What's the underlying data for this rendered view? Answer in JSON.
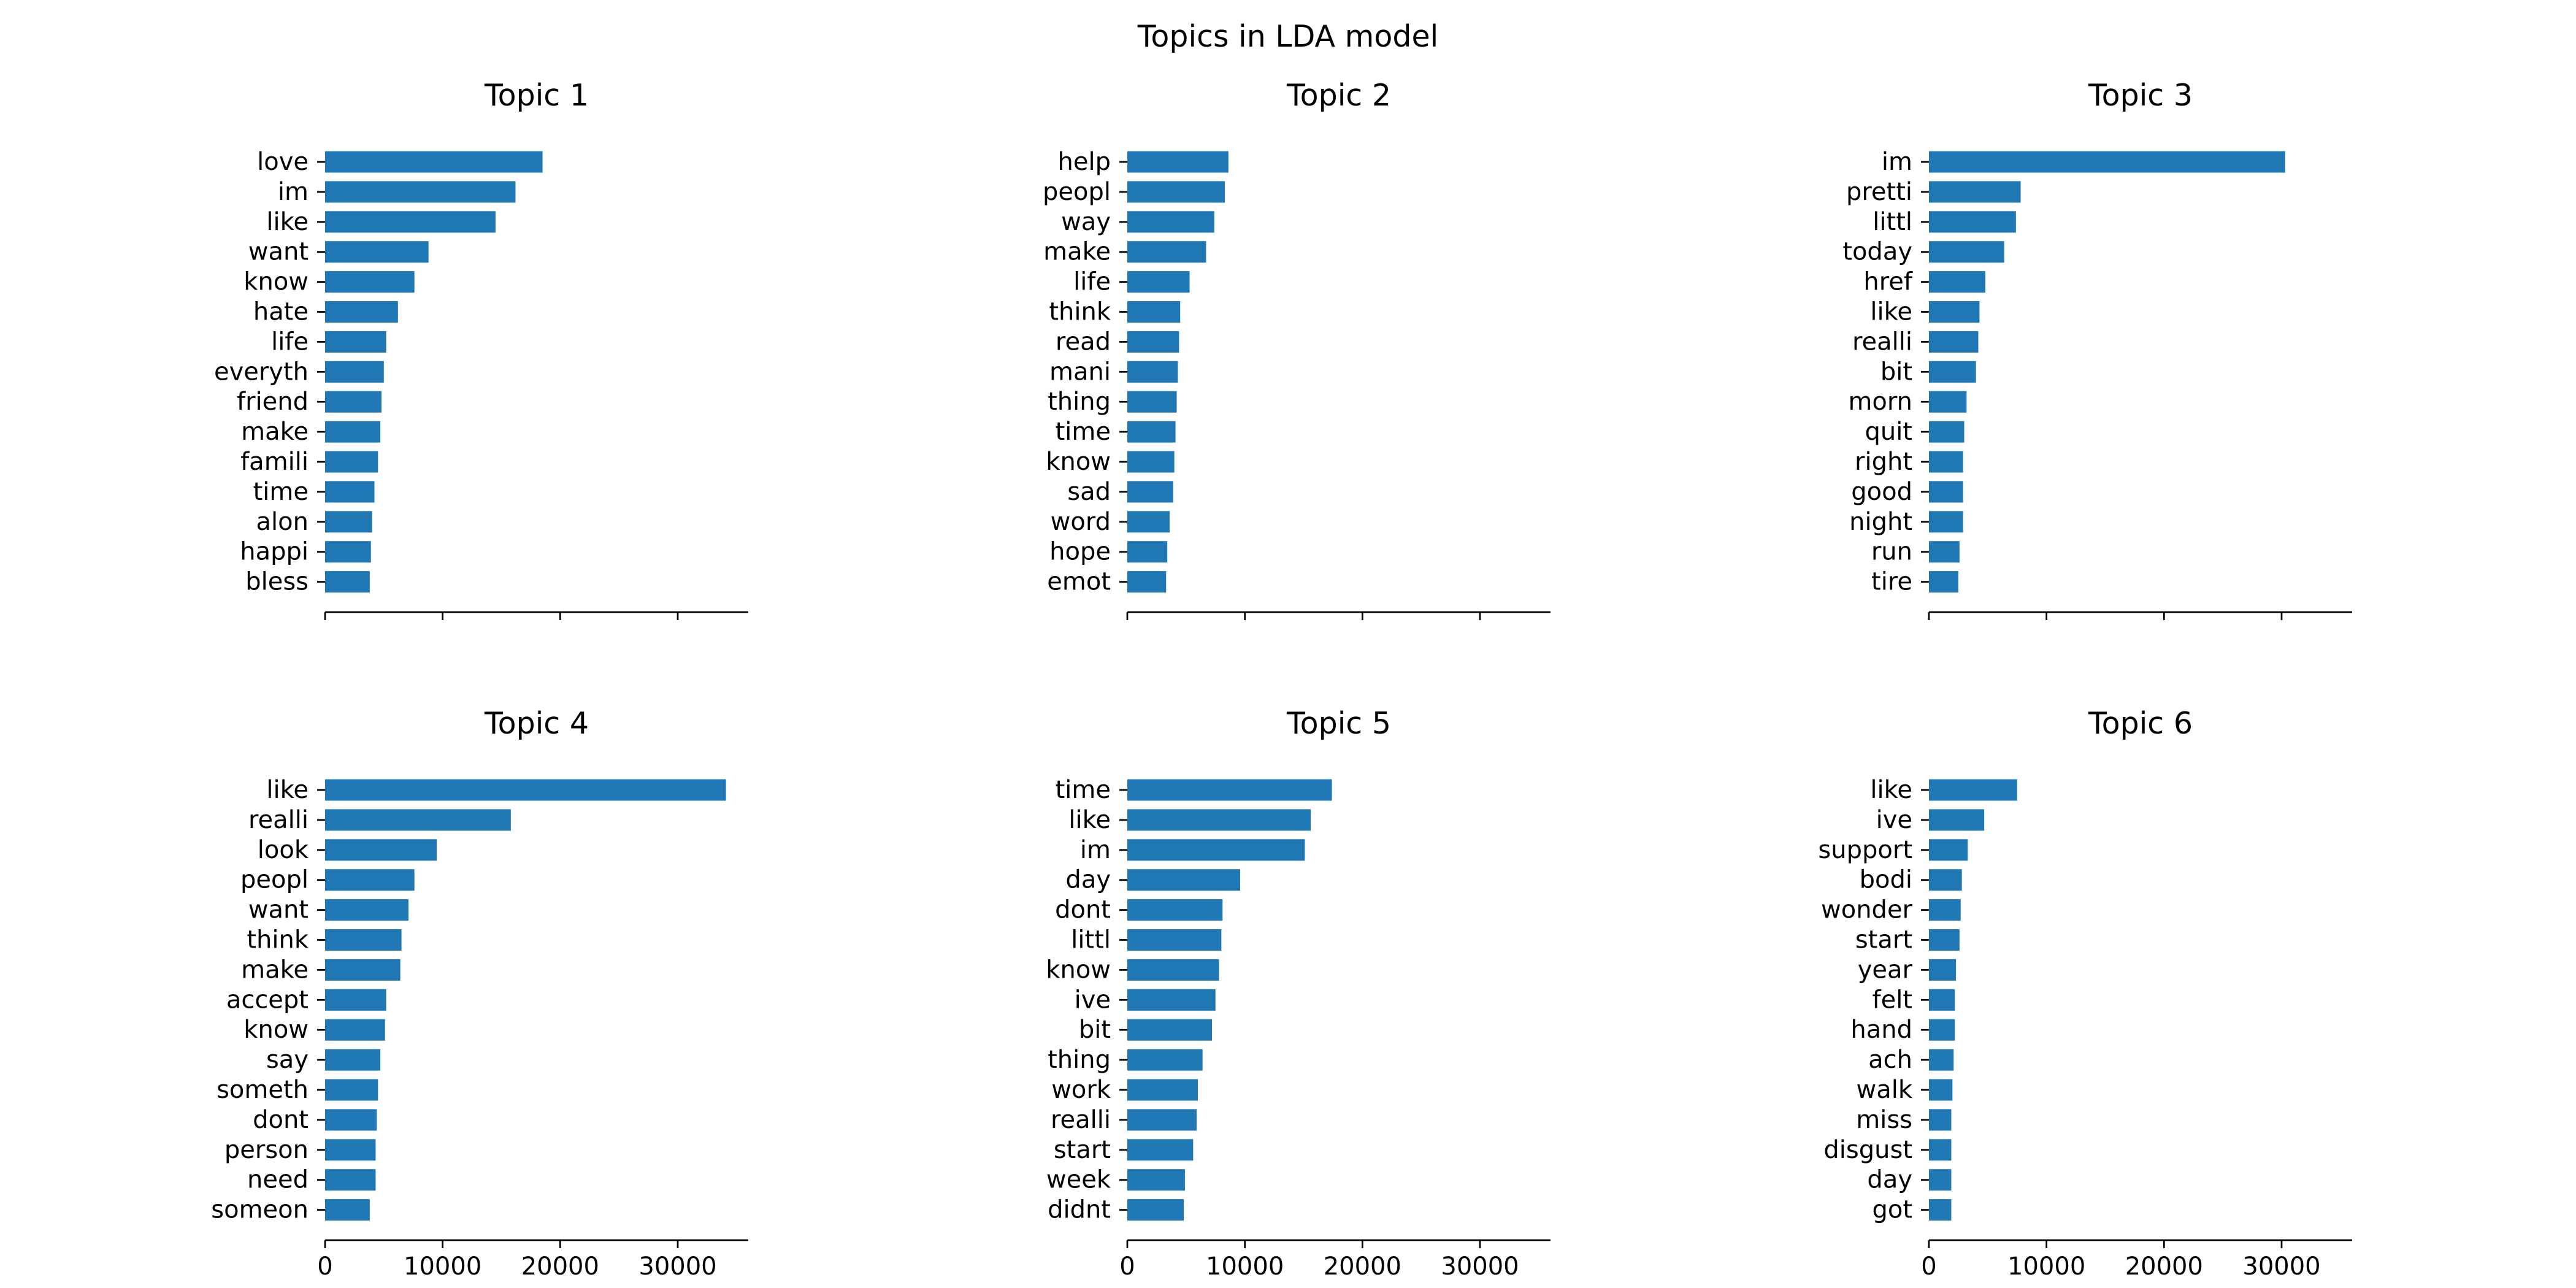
{
  "figure_title": "Topics in LDA model",
  "chart_data": [
    {
      "type": "bar",
      "orientation": "horizontal",
      "title": "Topic 1",
      "categories": [
        "love",
        "im",
        "like",
        "want",
        "know",
        "hate",
        "life",
        "everyth",
        "friend",
        "make",
        "famili",
        "time",
        "alon",
        "happi",
        "bless"
      ],
      "values": [
        18500,
        16200,
        14500,
        8800,
        7600,
        6200,
        5200,
        5000,
        4800,
        4700,
        4500,
        4200,
        4000,
        3900,
        3800
      ],
      "xlim": [
        0,
        36000
      ],
      "xticks": [
        0,
        10000,
        20000,
        30000
      ],
      "xtick_labels_visible": false,
      "color": "#1f77b4"
    },
    {
      "type": "bar",
      "orientation": "horizontal",
      "title": "Topic 2",
      "categories": [
        "help",
        "peopl",
        "way",
        "make",
        "life",
        "think",
        "read",
        "mani",
        "thing",
        "time",
        "know",
        "sad",
        "word",
        "hope",
        "emot"
      ],
      "values": [
        8600,
        8300,
        7400,
        6700,
        5300,
        4500,
        4400,
        4300,
        4200,
        4100,
        4000,
        3900,
        3600,
        3400,
        3300
      ],
      "xlim": [
        0,
        36000
      ],
      "xticks": [
        0,
        10000,
        20000,
        30000
      ],
      "xtick_labels_visible": false,
      "color": "#1f77b4"
    },
    {
      "type": "bar",
      "orientation": "horizontal",
      "title": "Topic 3",
      "categories": [
        "im",
        "pretti",
        "littl",
        "today",
        "href",
        "like",
        "realli",
        "bit",
        "morn",
        "quit",
        "right",
        "good",
        "night",
        "run",
        "tire"
      ],
      "values": [
        30300,
        7800,
        7400,
        6400,
        4800,
        4300,
        4200,
        4000,
        3200,
        3000,
        2900,
        2900,
        2900,
        2600,
        2500
      ],
      "xlim": [
        0,
        36000
      ],
      "xticks": [
        0,
        10000,
        20000,
        30000
      ],
      "xtick_labels_visible": false,
      "color": "#1f77b4"
    },
    {
      "type": "bar",
      "orientation": "horizontal",
      "title": "Topic 4",
      "categories": [
        "like",
        "realli",
        "look",
        "peopl",
        "want",
        "think",
        "make",
        "accept",
        "know",
        "say",
        "someth",
        "dont",
        "person",
        "need",
        "someon"
      ],
      "values": [
        34100,
        15800,
        9500,
        7600,
        7100,
        6500,
        6400,
        5200,
        5100,
        4700,
        4500,
        4400,
        4300,
        4300,
        3800
      ],
      "xlim": [
        0,
        36000
      ],
      "xticks": [
        0,
        10000,
        20000,
        30000
      ],
      "xtick_labels": [
        "0",
        "10000",
        "20000",
        "30000"
      ],
      "color": "#1f77b4"
    },
    {
      "type": "bar",
      "orientation": "horizontal",
      "title": "Topic 5",
      "categories": [
        "time",
        "like",
        "im",
        "day",
        "dont",
        "littl",
        "know",
        "ive",
        "bit",
        "thing",
        "work",
        "realli",
        "start",
        "week",
        "didnt"
      ],
      "values": [
        17400,
        15600,
        15100,
        9600,
        8100,
        8000,
        7800,
        7500,
        7200,
        6400,
        6000,
        5900,
        5600,
        4900,
        4800
      ],
      "xlim": [
        0,
        36000
      ],
      "xticks": [
        0,
        10000,
        20000,
        30000
      ],
      "xtick_labels": [
        "0",
        "10000",
        "20000",
        "30000"
      ],
      "color": "#1f77b4"
    },
    {
      "type": "bar",
      "orientation": "horizontal",
      "title": "Topic 6",
      "categories": [
        "like",
        "ive",
        "support",
        "bodi",
        "wonder",
        "start",
        "year",
        "felt",
        "hand",
        "ach",
        "walk",
        "miss",
        "disgust",
        "day",
        "got"
      ],
      "values": [
        7500,
        4700,
        3300,
        2800,
        2700,
        2600,
        2300,
        2200,
        2200,
        2100,
        2000,
        1900,
        1900,
        1900,
        1900
      ],
      "xlim": [
        0,
        36000
      ],
      "xticks": [
        0,
        10000,
        20000,
        30000
      ],
      "xtick_labels": [
        "0",
        "10000",
        "20000",
        "30000"
      ],
      "color": "#1f77b4"
    }
  ]
}
